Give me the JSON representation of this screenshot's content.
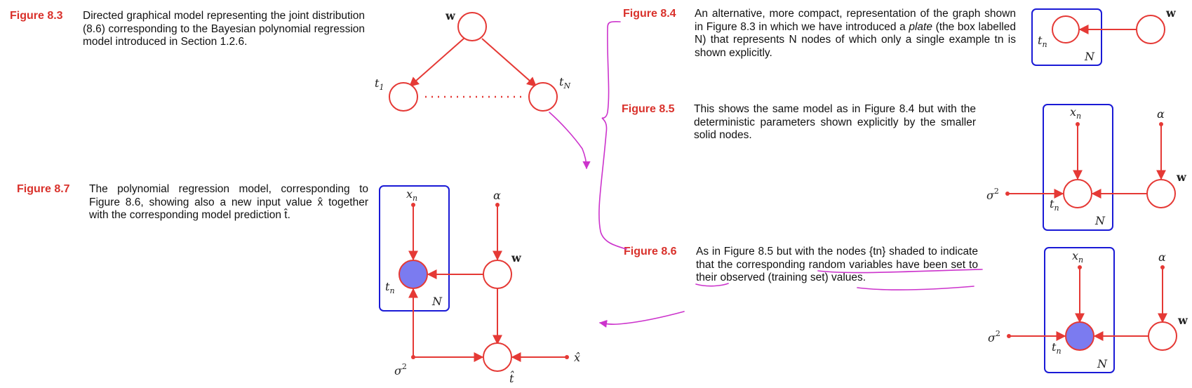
{
  "colors": {
    "label": "#d9312b",
    "edge": "#e53935",
    "plate": "#1a1ad6",
    "observed_fill": "#7b7bf0",
    "annotation": "#cc33cc"
  },
  "figures": {
    "f83": {
      "label": "Figure 8.3",
      "caption": "Directed graphical model representing the joint distribution (8.6) corresponding to the Bayesian polynomial regression model introduced in Section 1.2.6."
    },
    "f84": {
      "label": "Figure 8.4",
      "caption_pre": "An alternative, more compact, representation of the graph shown in Figure 8.3 in which we have introduced a ",
      "caption_em": "plate",
      "caption_post": " (the box labelled N) that represents N nodes of which only a single example tn is shown explicitly."
    },
    "f85": {
      "label": "Figure 8.5",
      "caption": "This shows the same model as in Figure 8.4 but with the deterministic parameters shown explicitly by the smaller solid nodes."
    },
    "f86": {
      "label": "Figure 8.6",
      "caption": "As in Figure 8.5 but with the nodes {tn} shaded to indicate that the corresponding random variables have been set to their observed (training set) values."
    },
    "f87": {
      "label": "Figure 8.7",
      "caption": "The polynomial regression model, corresponding to Figure 8.6, showing also a new input value x̂ together with the corresponding model prediction t̂."
    }
  },
  "node_labels": {
    "w": "w",
    "t1": "t",
    "t1_sub": "1",
    "tN": "t",
    "tN_sub": "N",
    "tn": "t",
    "tn_sub": "n",
    "xn": "x",
    "xn_sub": "n",
    "alpha": "α",
    "sigma": "σ",
    "sigma_sup": "2",
    "N": "N",
    "xhat": "x̂",
    "that": "t̂"
  }
}
